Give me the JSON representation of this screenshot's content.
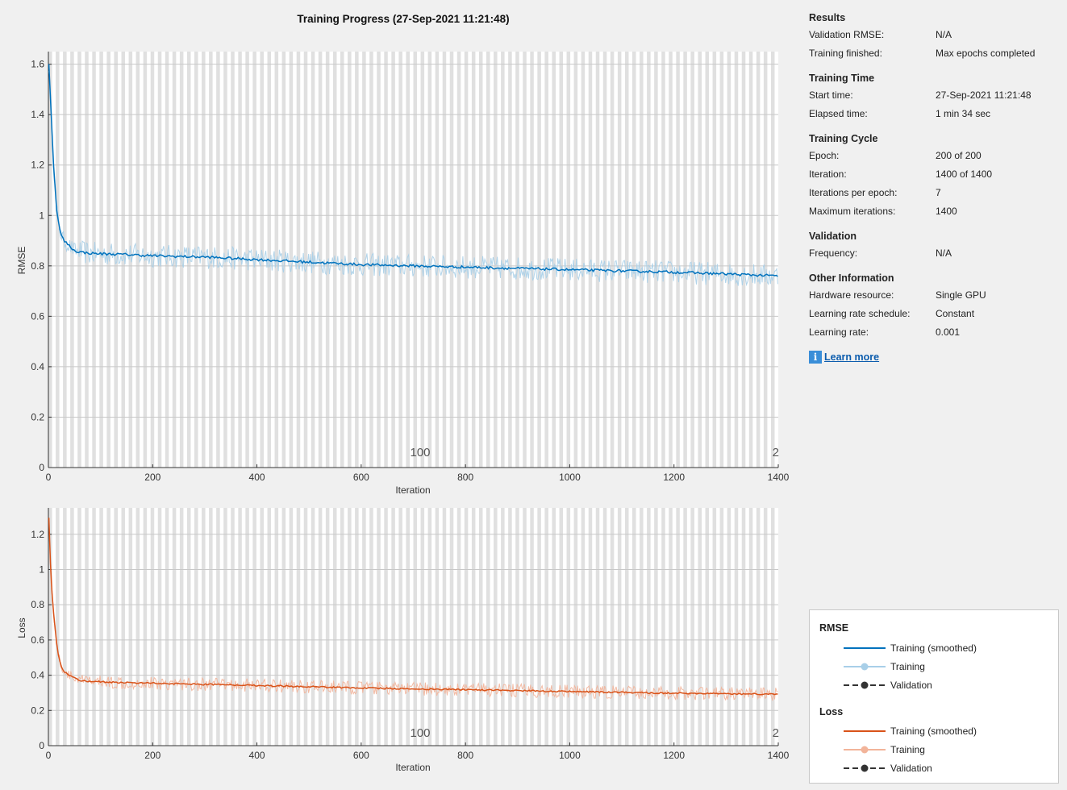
{
  "title": "Training Progress (27-Sep-2021 11:21:48)",
  "plots": {
    "rmse": {
      "ylabel": "RMSE",
      "xlabel": "Iteration",
      "epoch_label": "100",
      "epoch_label_end": "2"
    },
    "loss": {
      "ylabel": "Loss",
      "xlabel": "Iteration",
      "epoch_label": "100",
      "epoch_label_end": "2"
    }
  },
  "colors": {
    "rmse_smoothed": "#0072bd",
    "rmse_raw": "#a8cfe8",
    "loss_smoothed": "#d95319",
    "loss_raw": "#f2b49a",
    "validation": "#333333",
    "epoch_band": "#d6d6d6",
    "plot_bg": "#ffffff"
  },
  "info": {
    "results": {
      "heading": "Results",
      "rows": [
        {
          "key": "Validation RMSE:",
          "value": "N/A"
        },
        {
          "key": "Training finished:",
          "value": "Max epochs completed"
        }
      ]
    },
    "training_time": {
      "heading": "Training Time",
      "rows": [
        {
          "key": "Start time:",
          "value": "27-Sep-2021 11:21:48"
        },
        {
          "key": "Elapsed time:",
          "value": "1 min 34 sec"
        }
      ]
    },
    "training_cycle": {
      "heading": "Training Cycle",
      "rows": [
        {
          "key": "Epoch:",
          "value": "200 of 200"
        },
        {
          "key": "Iteration:",
          "value": "1400 of 1400"
        },
        {
          "key": "Iterations per epoch:",
          "value": "7"
        },
        {
          "key": "Maximum iterations:",
          "value": "1400"
        }
      ]
    },
    "validation": {
      "heading": "Validation",
      "rows": [
        {
          "key": "Frequency:",
          "value": "N/A"
        }
      ]
    },
    "other": {
      "heading": "Other Information",
      "rows": [
        {
          "key": "Hardware resource:",
          "value": "Single GPU"
        },
        {
          "key": "Learning rate schedule:",
          "value": "Constant"
        },
        {
          "key": "Learning rate:",
          "value": "0.001"
        }
      ]
    },
    "learn_more": "Learn more"
  },
  "legend": {
    "rmse_heading": "RMSE",
    "loss_heading": "Loss",
    "smoothed": "Training (smoothed)",
    "training": "Training",
    "validation": "Validation"
  },
  "chart_data": [
    {
      "type": "line",
      "title": "",
      "xlabel": "Iteration",
      "ylabel": "RMSE",
      "xlim": [
        0,
        1400
      ],
      "ylim": [
        0,
        1.65
      ],
      "xticks": [
        0,
        200,
        400,
        600,
        800,
        1000,
        1200,
        1400
      ],
      "yticks": [
        0,
        0.2,
        0.4,
        0.6,
        0.8,
        1,
        1.2,
        1.4,
        1.6
      ],
      "epochs": 200,
      "iterations_per_epoch": 7,
      "series": [
        {
          "name": "Training (smoothed)",
          "x": [
            1,
            5,
            10,
            15,
            20,
            25,
            30,
            40,
            50,
            60,
            80,
            100,
            150,
            200,
            300,
            400,
            500,
            600,
            700,
            800,
            900,
            1000,
            1100,
            1200,
            1300,
            1400
          ],
          "y": [
            1.6,
            1.42,
            1.2,
            1.04,
            0.96,
            0.92,
            0.9,
            0.88,
            0.86,
            0.855,
            0.85,
            0.848,
            0.845,
            0.84,
            0.835,
            0.825,
            0.815,
            0.805,
            0.8,
            0.795,
            0.79,
            0.785,
            0.78,
            0.775,
            0.768,
            0.76
          ]
        }
      ]
    },
    {
      "type": "line",
      "title": "",
      "xlabel": "Iteration",
      "ylabel": "Loss",
      "xlim": [
        0,
        1400
      ],
      "ylim": [
        0,
        1.35
      ],
      "xticks": [
        0,
        200,
        400,
        600,
        800,
        1000,
        1200,
        1400
      ],
      "yticks": [
        0,
        0.2,
        0.4,
        0.6,
        0.8,
        1,
        1.2
      ],
      "epochs": 200,
      "iterations_per_epoch": 7,
      "series": [
        {
          "name": "Training (smoothed)",
          "x": [
            1,
            5,
            10,
            15,
            20,
            25,
            30,
            40,
            50,
            60,
            80,
            100,
            150,
            200,
            300,
            400,
            500,
            600,
            700,
            800,
            900,
            1000,
            1100,
            1200,
            1300,
            1400
          ],
          "y": [
            1.29,
            0.95,
            0.75,
            0.6,
            0.5,
            0.45,
            0.42,
            0.4,
            0.385,
            0.37,
            0.365,
            0.362,
            0.358,
            0.355,
            0.348,
            0.342,
            0.335,
            0.328,
            0.322,
            0.318,
            0.313,
            0.307,
            0.302,
            0.298,
            0.295,
            0.292
          ]
        }
      ]
    }
  ]
}
